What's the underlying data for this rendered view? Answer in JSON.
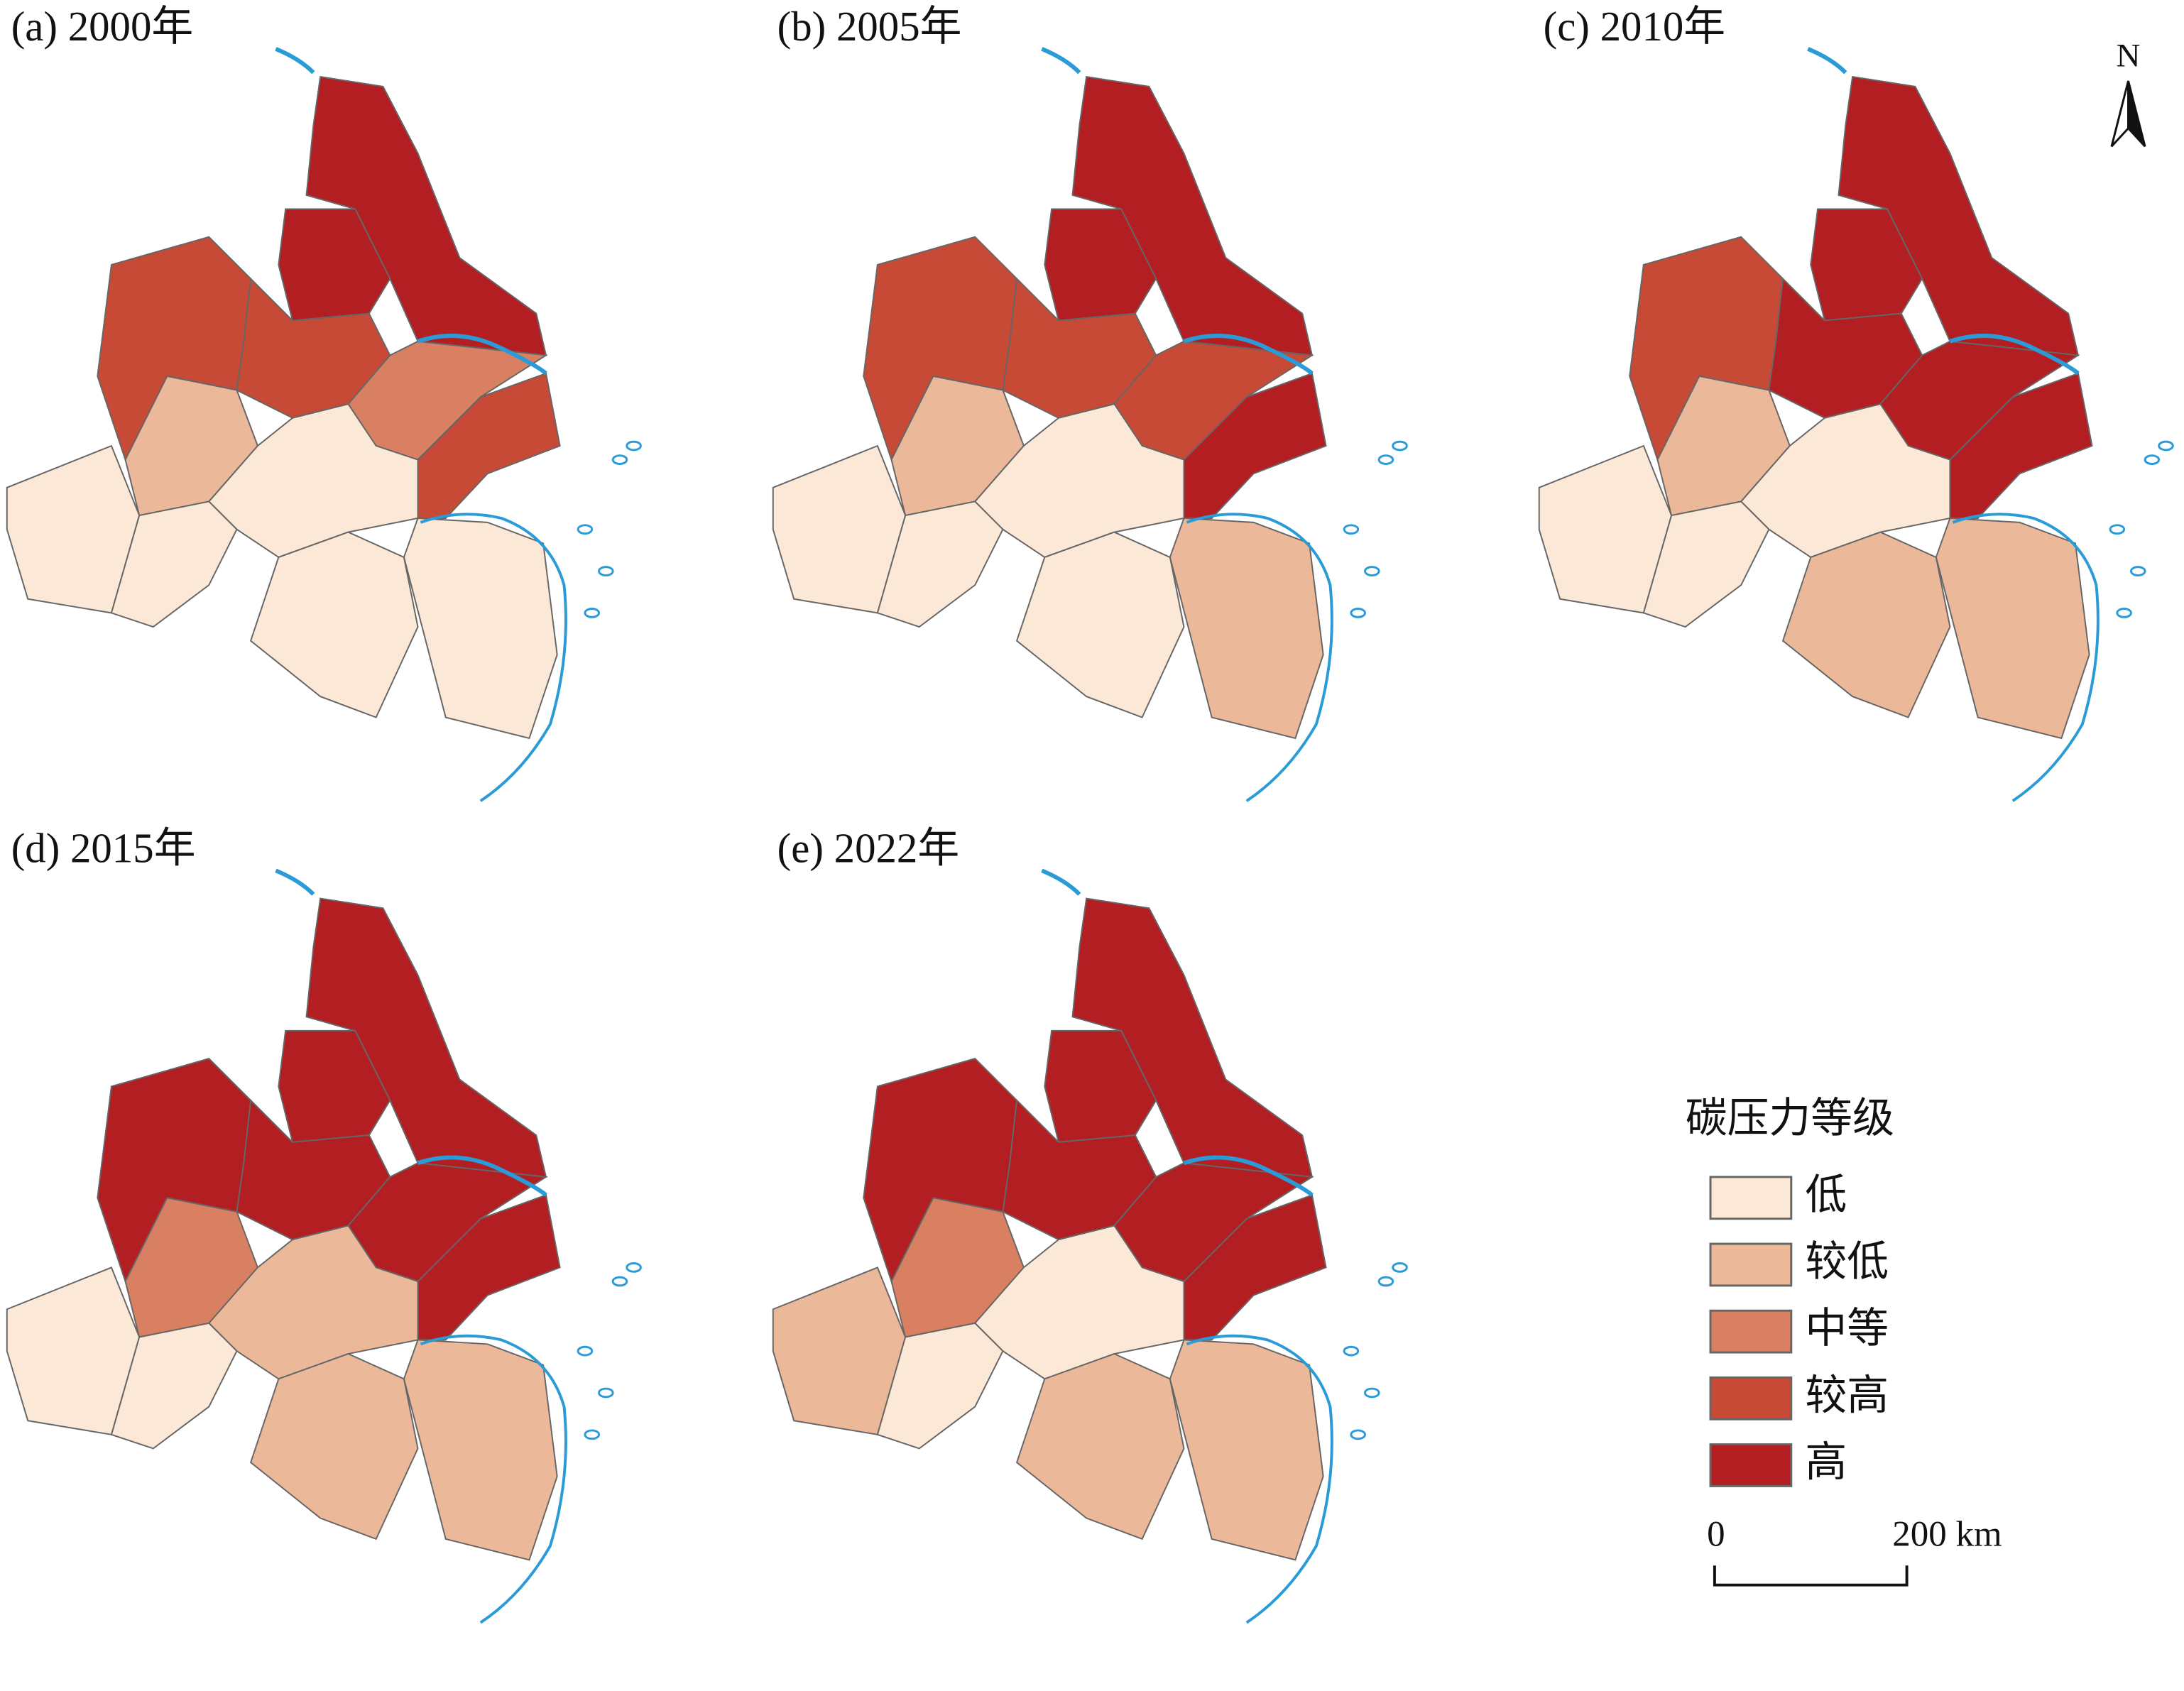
{
  "panels": [
    {
      "label": "(a) 2000年"
    },
    {
      "label": "(b) 2005年"
    },
    {
      "label": "(c) 2010年"
    },
    {
      "label": "(d) 2015年"
    },
    {
      "label": "(e) 2022年"
    }
  ],
  "north": "N",
  "legend": {
    "title": "碳压力等级",
    "items": [
      {
        "label": "低",
        "color": "#fce8d6"
      },
      {
        "label": "较低",
        "color": "#ebb99a"
      },
      {
        "label": "中等",
        "color": "#d98062"
      },
      {
        "label": "较高",
        "color": "#c64a35"
      },
      {
        "label": "高",
        "color": "#b31e23"
      }
    ]
  },
  "scale_bar": {
    "start": "0",
    "end": "200 km"
  }
}
